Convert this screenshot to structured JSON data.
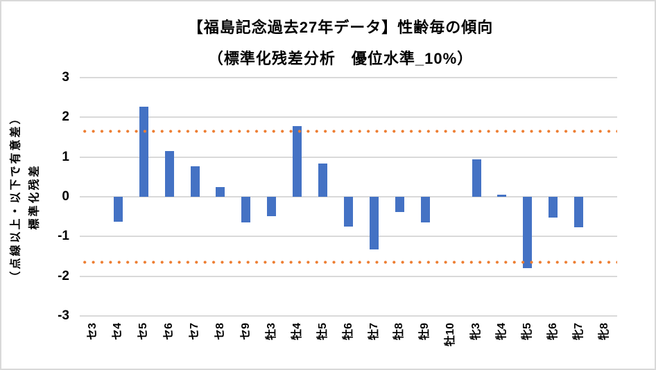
{
  "header": {
    "title": "【福島記念過去27年データ】性齢毎の傾向",
    "subtitle": "（標準化残差分析　優位水準_10%）"
  },
  "chart_data": {
    "type": "bar",
    "title": "【福島記念過去27年データ】性齢毎の傾向",
    "subtitle": "（標準化残差分析　優位水準_10%）",
    "categories": [
      "セ3",
      "セ4",
      "セ5",
      "セ6",
      "セ7",
      "セ8",
      "セ9",
      "牡3",
      "牡4",
      "牡5",
      "牡6",
      "牡7",
      "牡8",
      "牡9",
      "牡10",
      "牝3",
      "牝4",
      "牝5",
      "牝6",
      "牝7",
      "牝8"
    ],
    "values": [
      0,
      -0.63,
      2.26,
      1.15,
      0.77,
      0.25,
      -0.64,
      -0.48,
      1.78,
      0.83,
      -0.75,
      -1.33,
      -0.38,
      -0.64,
      0,
      0.94,
      0.05,
      -1.8,
      -0.53,
      -0.77,
      0
    ],
    "ylabel": "標準化残差",
    "ylabel_note": "（点線以上・以下で有意差）",
    "xlabel": "",
    "y_ticks": [
      3,
      2,
      1,
      0,
      -1,
      -2,
      -3
    ],
    "ylim": [
      -3,
      3
    ],
    "significance_lines": {
      "upper": 1.645,
      "lower": -1.645,
      "style": "dotted",
      "color": "#ED7D31"
    },
    "grid": true,
    "legend": false,
    "colors": {
      "bar": "#4472C4",
      "gridline": "#D9D9D9",
      "text": "#000000",
      "frame_border": "#D9D9D9"
    }
  }
}
